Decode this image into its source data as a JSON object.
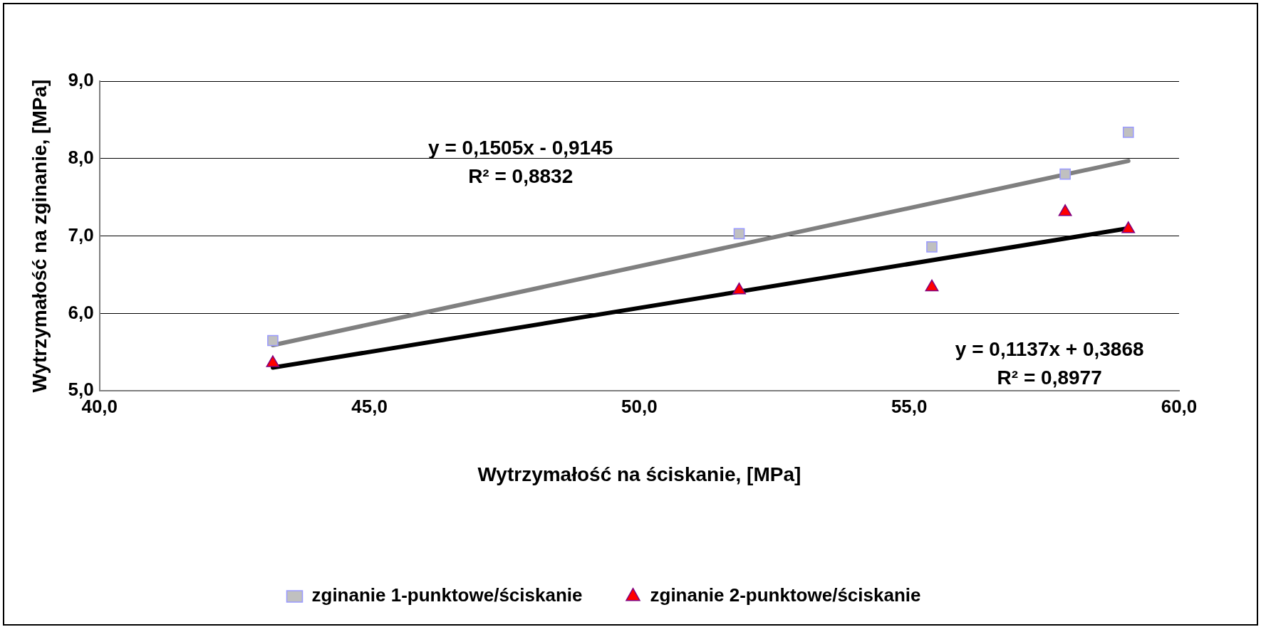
{
  "chart_data": {
    "type": "scatter",
    "xlabel": "Wytrzymałość na ściskanie, [MPa]",
    "ylabel": "Wytrzymałość na zginanie, [MPa]",
    "xlim": [
      40,
      60
    ],
    "xticks": [
      {
        "value": 40,
        "label": "40,0"
      },
      {
        "value": 45,
        "label": "45,0"
      },
      {
        "value": 50,
        "label": "50,0"
      },
      {
        "value": 55,
        "label": "55,0"
      },
      {
        "value": 60,
        "label": "60,0"
      }
    ],
    "ylim": [
      5,
      9
    ],
    "yticks": [
      {
        "value": 5,
        "label": "5,0"
      },
      {
        "value": 6,
        "label": "6,0"
      },
      {
        "value": 7,
        "label": "7,0"
      },
      {
        "value": 8,
        "label": "8,0"
      },
      {
        "value": 9,
        "label": "9,0"
      }
    ],
    "grid": "y",
    "legend": "bottom",
    "series": [
      {
        "name": "zginanie 1-punktowe/ściskanie",
        "marker": "square",
        "color": "#c0c0c0",
        "x": [
          43.21,
          51.85,
          55.42,
          57.89,
          59.06
        ],
        "values": [
          5.65,
          7.03,
          6.86,
          7.8,
          8.34
        ]
      },
      {
        "name": "zginanie 2-punktowe/ściskanie",
        "marker": "triangle",
        "color": "#ff0000",
        "x": [
          43.21,
          51.85,
          55.42,
          57.89,
          59.06
        ],
        "values": [
          5.36,
          6.3,
          6.34,
          7.31,
          7.09
        ]
      },
      {
        "type": "line",
        "marker": "none",
        "color": "#808080",
        "x": [
          43.21,
          59.06
        ],
        "values": [
          5.59,
          7.97
        ]
      },
      {
        "type": "line",
        "marker": "none",
        "color": "#000000",
        "x": [
          43.21,
          59.06
        ],
        "values": [
          5.3,
          7.1
        ]
      }
    ],
    "annotations": [
      "y = 0,1505x - 0,9145",
      "R² = 0,8832",
      "y = 0,1137x + 0,3868",
      "R² = 0,8977"
    ]
  }
}
